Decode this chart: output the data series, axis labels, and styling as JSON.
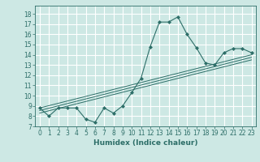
{
  "title": "",
  "xlabel": "Humidex (Indice chaleur)",
  "ylabel": "",
  "bg_color": "#cde8e4",
  "grid_color": "#ffffff",
  "line_color": "#2d6e68",
  "xlim": [
    -0.5,
    23.5
  ],
  "ylim": [
    7,
    18.8
  ],
  "xticks": [
    0,
    1,
    2,
    3,
    4,
    5,
    6,
    7,
    8,
    9,
    10,
    11,
    12,
    13,
    14,
    15,
    16,
    17,
    18,
    19,
    20,
    21,
    22,
    23
  ],
  "yticks": [
    7,
    8,
    9,
    10,
    11,
    12,
    13,
    14,
    15,
    16,
    17,
    18
  ],
  "scatter_x": [
    0,
    1,
    2,
    3,
    4,
    5,
    6,
    7,
    8,
    9,
    10,
    11,
    12,
    13,
    14,
    15,
    16,
    17,
    18,
    19,
    20,
    21,
    22,
    23
  ],
  "scatter_y": [
    8.8,
    8.0,
    8.8,
    8.8,
    8.8,
    7.7,
    7.4,
    8.8,
    8.3,
    9.0,
    10.3,
    11.7,
    14.8,
    17.2,
    17.2,
    17.7,
    16.0,
    14.7,
    13.2,
    13.0,
    14.2,
    14.6,
    14.6,
    14.2
  ],
  "reg_lines": [
    {
      "x": [
        0,
        23
      ],
      "y": [
        8.3,
        13.5
      ]
    },
    {
      "x": [
        0,
        23
      ],
      "y": [
        8.55,
        13.75
      ]
    },
    {
      "x": [
        0,
        23
      ],
      "y": [
        8.8,
        14.0
      ]
    }
  ],
  "tick_fontsize": 5.5,
  "xlabel_fontsize": 6.5
}
